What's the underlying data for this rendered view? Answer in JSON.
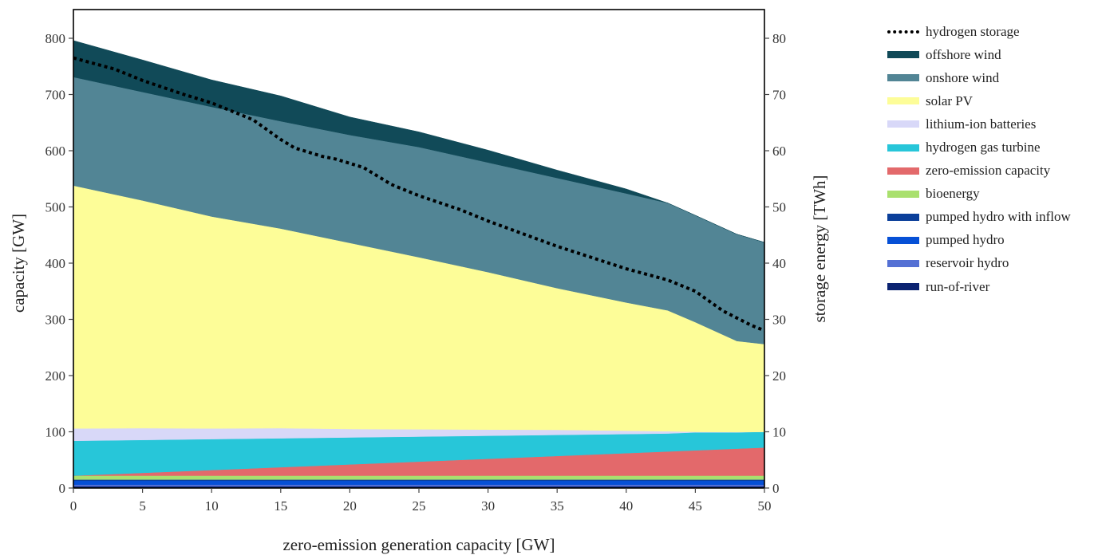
{
  "chart_data": {
    "type": "area",
    "stacked": true,
    "title": "",
    "xlabel": "zero-emission generation capacity [GW]",
    "ylabel": "capacity [GW]",
    "y2label": "storage energy [TWh]",
    "xlim": [
      0,
      50
    ],
    "ylim": [
      0,
      850
    ],
    "y2lim": [
      0,
      85
    ],
    "xticks": [
      0,
      5,
      10,
      15,
      20,
      25,
      30,
      35,
      40,
      45,
      50
    ],
    "yticks": [
      0,
      100,
      200,
      300,
      400,
      500,
      600,
      700,
      800
    ],
    "y2ticks": [
      0,
      10,
      20,
      30,
      40,
      50,
      60,
      70,
      80
    ],
    "grid": false,
    "legend_position": "right-outside",
    "x": [
      0,
      5,
      10,
      15,
      20,
      25,
      30,
      35,
      40,
      43,
      45,
      48,
      50
    ],
    "series": [
      {
        "name": "run-of-river",
        "color": "#0b2371",
        "values": [
          3,
          3,
          3,
          3,
          3,
          3,
          3,
          3,
          3,
          3,
          3,
          3,
          3
        ]
      },
      {
        "name": "reservoir hydro",
        "color": "#5470d4",
        "values": [
          3,
          3,
          3,
          3,
          3,
          3,
          3,
          3,
          3,
          3,
          3,
          3,
          3
        ]
      },
      {
        "name": "pumped hydro",
        "color": "#0650d6",
        "values": [
          7,
          7,
          7,
          7,
          7,
          7,
          7,
          7,
          7,
          7,
          7,
          7,
          7
        ]
      },
      {
        "name": "pumped hydro with inflow",
        "color": "#0b3f9a",
        "values": [
          2,
          2,
          2,
          2,
          2,
          2,
          2,
          2,
          2,
          2,
          2,
          2,
          2
        ]
      },
      {
        "name": "bioenergy",
        "color": "#a9e06e",
        "values": [
          7,
          7,
          7,
          7,
          7,
          7,
          7,
          7,
          7,
          7,
          7,
          7,
          7
        ]
      },
      {
        "name": "zero-emission capacity",
        "color": "#e3696b",
        "values": [
          0,
          5,
          10,
          15,
          20,
          25,
          30,
          35,
          40,
          43,
          45,
          48,
          50
        ]
      },
      {
        "name": "hydrogen gas turbine",
        "color": "#27c6d9",
        "values": [
          62,
          58.5,
          55,
          51.5,
          48,
          44.5,
          41,
          37.5,
          34,
          32,
          32,
          29,
          28
        ]
      },
      {
        "name": "lithium-ion batteries",
        "color": "#d8d8f8",
        "values": [
          22,
          21,
          19,
          18,
          15,
          13,
          11,
          9,
          6,
          4,
          1,
          0.5,
          0
        ]
      },
      {
        "name": "solar PV",
        "color": "#fdfd98",
        "values": [
          432,
          405,
          377,
          355,
          331,
          306,
          280,
          252,
          228,
          215,
          195,
          162,
          156
        ]
      },
      {
        "name": "onshore wind",
        "color": "#528595",
        "values": [
          193,
          193,
          195,
          191,
          192,
          196,
          195,
          196,
          194,
          191,
          190,
          190,
          181
        ]
      },
      {
        "name": "offshore wind",
        "color": "#114a58",
        "values": [
          65,
          57,
          48,
          45,
          32,
          27,
          22,
          14,
          8,
          0,
          0,
          0,
          0
        ]
      }
    ],
    "line_series": {
      "name": "hydrogen storage",
      "axis": "right",
      "style": "dotted",
      "color": "#000000",
      "x": [
        0,
        3,
        5,
        8,
        10,
        13,
        15,
        16,
        18,
        19,
        21,
        23,
        25,
        28,
        30,
        35,
        40,
        43,
        44,
        45,
        47,
        49,
        50
      ],
      "values": [
        76.5,
        74.5,
        72.5,
        70,
        68.5,
        65.5,
        62,
        60.5,
        59,
        58.5,
        57,
        54,
        52,
        49.5,
        47.5,
        43,
        39,
        37,
        36,
        35,
        31.5,
        29,
        28
      ]
    }
  },
  "legend": {
    "items": [
      {
        "label": "hydrogen storage",
        "kind": "dotted",
        "color": "#000000"
      },
      {
        "label": "offshore wind",
        "kind": "patch",
        "color": "#114a58"
      },
      {
        "label": "onshore wind",
        "kind": "patch",
        "color": "#528595"
      },
      {
        "label": "solar PV",
        "kind": "patch",
        "color": "#fdfd98"
      },
      {
        "label": "lithium-ion batteries",
        "kind": "patch",
        "color": "#d8d8f8"
      },
      {
        "label": "hydrogen gas turbine",
        "kind": "patch",
        "color": "#27c6d9"
      },
      {
        "label": "zero-emission capacity",
        "kind": "patch",
        "color": "#e3696b"
      },
      {
        "label": "bioenergy",
        "kind": "patch",
        "color": "#a9e06e"
      },
      {
        "label": "pumped hydro with inflow",
        "kind": "patch",
        "color": "#0b3f9a"
      },
      {
        "label": "pumped hydro",
        "kind": "patch",
        "color": "#0650d6"
      },
      {
        "label": "reservoir hydro",
        "kind": "patch",
        "color": "#5470d4"
      },
      {
        "label": "run-of-river",
        "kind": "patch",
        "color": "#0b2371"
      }
    ]
  }
}
